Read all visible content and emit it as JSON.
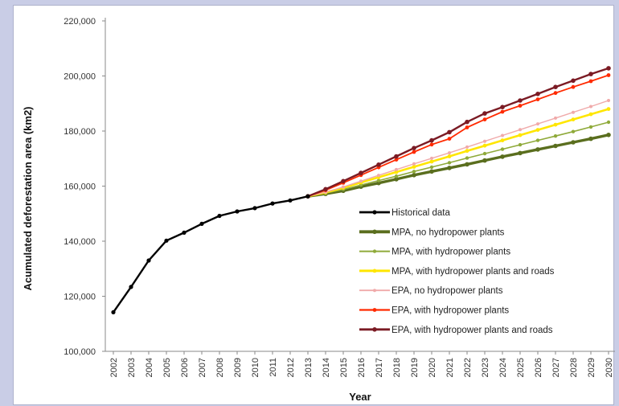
{
  "chart_data": {
    "type": "line",
    "xlabel": "Year",
    "ylabel": "Acumulated deforestation area (km2)",
    "ylim": [
      100000,
      220000
    ],
    "yticks": [
      100000,
      120000,
      140000,
      160000,
      180000,
      200000,
      220000
    ],
    "ytick_labels": [
      "100,000",
      "120,000",
      "140,000",
      "160,000",
      "180,000",
      "200,000",
      "220,000"
    ],
    "categories": [
      "2002",
      "2003",
      "2004",
      "2005",
      "2006",
      "2007",
      "2008",
      "2009",
      "2010",
      "2011",
      "2012",
      "2013",
      "2014",
      "2015",
      "2016",
      "2017",
      "2018",
      "2019",
      "2020",
      "2021",
      "2022",
      "2023",
      "2024",
      "2025",
      "2026",
      "2027",
      "2028",
      "2029",
      "2030"
    ],
    "grid": false,
    "legend_position": "lower-right",
    "series": [
      {
        "name": "Historical data",
        "color": "#000000",
        "x": [
          "2002",
          "2003",
          "2004",
          "2005",
          "2006",
          "2007",
          "2008",
          "2009",
          "2010",
          "2011",
          "2012",
          "2013"
        ],
        "values": [
          114200,
          123400,
          133000,
          140200,
          143100,
          146300,
          149200,
          150800,
          152000,
          153700,
          154800,
          156300
        ]
      },
      {
        "name": "MPA, no hydropower plants",
        "color": "#5a6e1e",
        "x": [
          "2013",
          "2014",
          "2015",
          "2016",
          "2017",
          "2018",
          "2019",
          "2020",
          "2021",
          "2022",
          "2023",
          "2024",
          "2025",
          "2026",
          "2027",
          "2028",
          "2029",
          "2030"
        ],
        "values": [
          156300,
          157200,
          158300,
          159800,
          161100,
          162500,
          164000,
          165300,
          166600,
          167900,
          169300,
          170700,
          172000,
          173300,
          174600,
          175900,
          177200,
          178600
        ]
      },
      {
        "name": "MPA, with hydropower plants",
        "color": "#8faa3a",
        "x": [
          "2013",
          "2014",
          "2015",
          "2016",
          "2017",
          "2018",
          "2019",
          "2020",
          "2021",
          "2022",
          "2023",
          "2024",
          "2025",
          "2026",
          "2027",
          "2028",
          "2029",
          "2030"
        ],
        "values": [
          156300,
          157400,
          158800,
          160400,
          162000,
          163600,
          165300,
          166900,
          168500,
          170200,
          171800,
          173400,
          175000,
          176600,
          178200,
          179800,
          181500,
          183200
        ]
      },
      {
        "name": "MPA, with hydropower plants and roads",
        "color": "#ffe600",
        "x": [
          "2013",
          "2014",
          "2015",
          "2016",
          "2017",
          "2018",
          "2019",
          "2020",
          "2021",
          "2022",
          "2023",
          "2024",
          "2025",
          "2026",
          "2027",
          "2028",
          "2029",
          "2030"
        ],
        "values": [
          156300,
          157700,
          159400,
          161300,
          163200,
          165100,
          167000,
          168900,
          170800,
          172800,
          174700,
          176600,
          178500,
          180400,
          182300,
          184200,
          186100,
          188000
        ]
      },
      {
        "name": "EPA, no hydropower plants",
        "color": "#f0aaaa",
        "x": [
          "2013",
          "2014",
          "2015",
          "2016",
          "2017",
          "2018",
          "2019",
          "2020",
          "2021",
          "2022",
          "2023",
          "2024",
          "2025",
          "2026",
          "2027",
          "2028",
          "2029",
          "2030"
        ],
        "values": [
          156300,
          157800,
          159700,
          161800,
          163900,
          166000,
          168100,
          170100,
          172100,
          174200,
          176300,
          178400,
          180500,
          182600,
          184700,
          186800,
          188900,
          191100
        ]
      },
      {
        "name": "EPA, with hydropower plants",
        "color": "#ff2a00",
        "x": [
          "2013",
          "2014",
          "2015",
          "2016",
          "2017",
          "2018",
          "2019",
          "2020",
          "2021",
          "2022",
          "2023",
          "2024",
          "2025",
          "2026",
          "2027",
          "2028",
          "2029",
          "2030"
        ],
        "values": [
          156300,
          158500,
          161200,
          164000,
          166800,
          169600,
          172400,
          175100,
          177200,
          181300,
          184200,
          187000,
          189200,
          191500,
          193800,
          196000,
          198100,
          200300
        ]
      },
      {
        "name": "EPA, with hydropower plants and roads",
        "color": "#7b1b24",
        "x": [
          "2013",
          "2014",
          "2015",
          "2016",
          "2017",
          "2018",
          "2019",
          "2020",
          "2021",
          "2022",
          "2023",
          "2024",
          "2025",
          "2026",
          "2027",
          "2028",
          "2029",
          "2030"
        ],
        "values": [
          156300,
          158900,
          161800,
          164800,
          167800,
          170800,
          173800,
          176600,
          179600,
          183300,
          186400,
          188700,
          191100,
          193500,
          196000,
          198300,
          200700,
          202800
        ]
      }
    ]
  }
}
